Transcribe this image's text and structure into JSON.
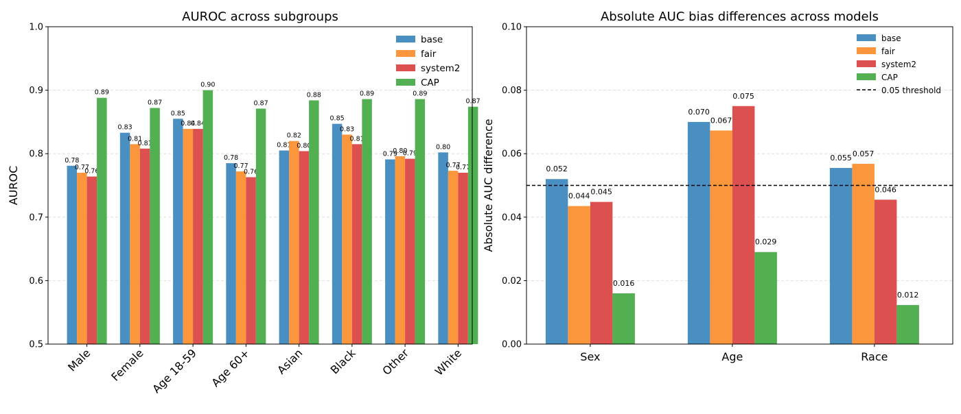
{
  "colors": {
    "base": "#4a8fc2",
    "fair": "#fb963d",
    "system2": "#dd5050",
    "CAP": "#52b052",
    "grid": "#cccccc",
    "threshold": "#000000"
  },
  "chart_data": [
    {
      "type": "bar",
      "title": "AUROC across subgroups",
      "xlabel": "",
      "ylabel": "AUROC",
      "ylim": [
        0.5,
        1.0
      ],
      "yticks": [
        "0.5",
        "0.6",
        "0.7",
        "0.8",
        "0.9",
        "1.0"
      ],
      "ytick_values": [
        0.5,
        0.6,
        0.7,
        0.8,
        0.9,
        1.0
      ],
      "grid": true,
      "legend_position": "top-right",
      "categories": [
        "Male",
        "Female",
        "Age 18-59",
        "Age 60+",
        "Asian",
        "Black",
        "Other",
        "White"
      ],
      "series": [
        {
          "name": "base",
          "values": [
            0.781,
            0.833,
            0.855,
            0.785,
            0.805,
            0.847,
            0.791,
            0.802
          ],
          "labels": [
            "0.78",
            "0.83",
            "0.85",
            "0.78",
            "0.81",
            "0.85",
            "0.79",
            "0.80"
          ]
        },
        {
          "name": "fair",
          "values": [
            0.77,
            0.815,
            0.839,
            0.772,
            0.82,
            0.83,
            0.796,
            0.773
          ],
          "labels": [
            "0.77",
            "0.81",
            "0.84",
            "0.77",
            "0.82",
            "0.83",
            "0.80",
            "0.77"
          ]
        },
        {
          "name": "system2",
          "values": [
            0.764,
            0.808,
            0.839,
            0.763,
            0.804,
            0.815,
            0.792,
            0.77
          ],
          "labels": [
            "0.76",
            "0.81",
            "0.84",
            "0.76",
            "0.80",
            "0.81",
            "0.79",
            "0.77"
          ]
        },
        {
          "name": "CAP",
          "values": [
            0.888,
            0.872,
            0.9,
            0.871,
            0.884,
            0.886,
            0.886,
            0.874
          ],
          "labels": [
            "0.89",
            "0.87",
            "0.90",
            "0.87",
            "0.88",
            "0.89",
            "0.89",
            "0.87"
          ]
        }
      ]
    },
    {
      "type": "bar",
      "title": "Absolute AUC bias differences across models",
      "xlabel": "",
      "ylabel": "Absolute AUC difference",
      "ylim": [
        0.0,
        0.1
      ],
      "yticks": [
        "0.00",
        "0.02",
        "0.04",
        "0.06",
        "0.08",
        "0.10"
      ],
      "ytick_values": [
        0.0,
        0.02,
        0.04,
        0.06,
        0.08,
        0.1
      ],
      "grid": true,
      "legend_position": "top-right",
      "threshold": {
        "value": 0.05,
        "label": "0.05 threshold"
      },
      "categories": [
        "Sex",
        "Age",
        "Race"
      ],
      "series": [
        {
          "name": "base",
          "values": [
            0.052,
            0.07,
            0.0555
          ],
          "labels": [
            "0.052",
            "0.070",
            "0.055"
          ]
        },
        {
          "name": "fair",
          "values": [
            0.0435,
            0.0673,
            0.0568
          ],
          "labels": [
            "0.044",
            "0.067",
            "0.057"
          ]
        },
        {
          "name": "system2",
          "values": [
            0.0448,
            0.075,
            0.0455
          ],
          "labels": [
            "0.045",
            "0.075",
            "0.046"
          ]
        },
        {
          "name": "CAP",
          "values": [
            0.016,
            0.029,
            0.0123
          ],
          "labels": [
            "0.016",
            "0.029",
            "0.012"
          ]
        }
      ]
    }
  ]
}
